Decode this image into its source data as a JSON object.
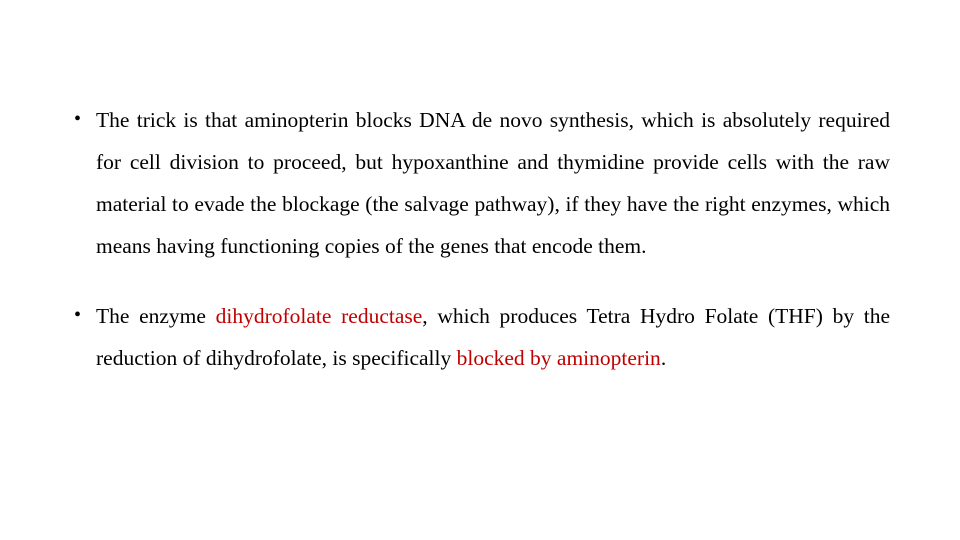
{
  "slide": {
    "background_color": "#ffffff",
    "text_color": "#000000",
    "highlight_color": "#c00000",
    "font_family": "Georgia, 'Times New Roman', serif",
    "font_size_pt": 16,
    "line_height": 1.95,
    "text_align": "justify",
    "bullets": [
      {
        "runs": [
          {
            "text": "The trick is that aminopterin blocks DNA de novo synthesis, which is absolutely required for cell division to proceed, but hypoxanthine and thymidine provide cells with the raw material to evade the blockage (the salvage pathway), if they have the right enzymes, which means having functioning copies of the genes that encode them.",
            "highlight": false
          }
        ]
      },
      {
        "runs": [
          {
            "text": "The enzyme ",
            "highlight": false
          },
          {
            "text": "dihydrofolate reductase",
            "highlight": true
          },
          {
            "text": ", which produces Tetra Hydro Folate (THF) by the reduction of dihydrofolate, is specifically ",
            "highlight": false
          },
          {
            "text": "blocked by aminopterin",
            "highlight": true
          },
          {
            "text": ".",
            "highlight": false
          }
        ]
      }
    ]
  }
}
